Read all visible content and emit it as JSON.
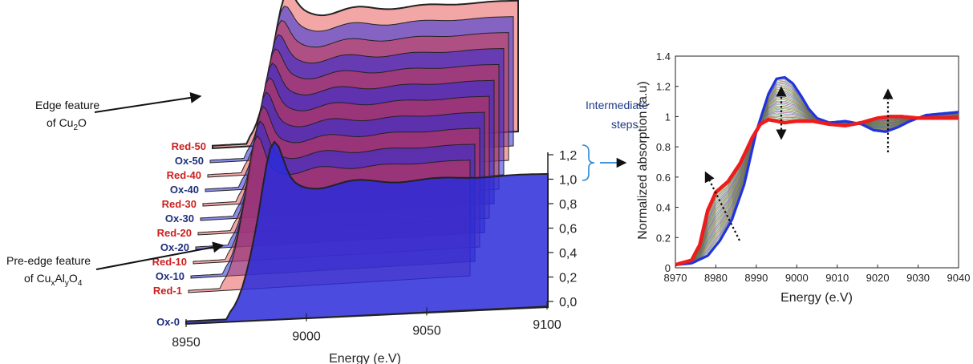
{
  "chart_data": [
    {
      "type": "area",
      "xlabel": "Energy (e.V)",
      "x_ticks": [
        "8950",
        "9000",
        "9050",
        "9100"
      ],
      "y_ticks": [
        "0,0",
        "0,2",
        "0,4",
        "0,6",
        "0,8",
        "1,0",
        "1,2"
      ],
      "series": [
        {
          "name": "Ox-0",
          "color": "#2b2bd9"
        },
        {
          "name": "Red-1",
          "color": "#e23a3a"
        },
        {
          "name": "Ox-10",
          "color": "#2b2bd9"
        },
        {
          "name": "Red-10",
          "color": "#e23a3a"
        },
        {
          "name": "Ox-20",
          "color": "#2b2bd9"
        },
        {
          "name": "Red-20",
          "color": "#e23a3a"
        },
        {
          "name": "Ox-30",
          "color": "#2b2bd9"
        },
        {
          "name": "Red-30",
          "color": "#e23a3a"
        },
        {
          "name": "Ox-40",
          "color": "#2b2bd9"
        },
        {
          "name": "Red-40",
          "color": "#e23a3a"
        },
        {
          "name": "Ox-50",
          "color": "#2b2bd9"
        },
        {
          "name": "Red-50",
          "color": "#e23a3a"
        }
      ],
      "ox_label_color": "#1f2f7a",
      "red_label_color": "#cc1f1f",
      "annotations": {
        "edge_feature": {
          "line1": "Edge feature",
          "line2_prefix": "of Cu",
          "line2_sub": "2",
          "line2_suffix": "O"
        },
        "pre_edge_feature": {
          "line1": "Pre-edge feature",
          "line2_prefix": "of Cu",
          "sub1": "x",
          "mid1": "Al",
          "sub2": "y",
          "mid2": "O",
          "sub3": "4"
        },
        "intermediate": {
          "line1": "Intermediate",
          "line2": "steps",
          "color": "#1f3a8a"
        }
      }
    },
    {
      "type": "line",
      "xlabel": "Energy (e.V)",
      "ylabel": "Normalized absorption (a.u)",
      "xlim": [
        8970,
        9040
      ],
      "ylim": [
        0,
        1.4
      ],
      "x_ticks": [
        8970,
        8980,
        8990,
        9000,
        9010,
        9020,
        9030,
        9040
      ],
      "y_ticks": [
        "0",
        "0.2",
        "0.4",
        "0.6",
        "0.8",
        "1",
        "1.2",
        "1.4"
      ],
      "series": [
        {
          "color": "#2233dd",
          "x": [
            8970,
            8974,
            8978,
            8981,
            8984,
            8987,
            8990,
            8993,
            8995,
            8997,
            8999,
            9001,
            9003,
            9005,
            9008,
            9012,
            9016,
            9019,
            9022,
            9025,
            9028,
            9032,
            9036,
            9040
          ],
          "y": [
            0.02,
            0.03,
            0.08,
            0.18,
            0.32,
            0.55,
            0.9,
            1.15,
            1.25,
            1.26,
            1.22,
            1.14,
            1.05,
            0.99,
            0.96,
            0.97,
            0.95,
            0.91,
            0.9,
            0.93,
            0.97,
            1.01,
            1.02,
            1.03
          ]
        },
        {
          "color": "#ee1c1c",
          "x": [
            8970,
            8974,
            8976,
            8978,
            8980,
            8983,
            8986,
            8989,
            8991,
            8993,
            8995,
            8997,
            9000,
            9004,
            9008,
            9012,
            9016,
            9020,
            9023,
            9026,
            9030,
            9035,
            9040
          ],
          "y": [
            0.02,
            0.05,
            0.15,
            0.38,
            0.5,
            0.57,
            0.69,
            0.86,
            0.95,
            0.98,
            0.97,
            0.96,
            0.97,
            0.97,
            0.95,
            0.94,
            0.96,
            0.99,
            1.0,
            1.0,
            0.99,
            0.99,
            0.99
          ]
        }
      ]
    }
  ]
}
